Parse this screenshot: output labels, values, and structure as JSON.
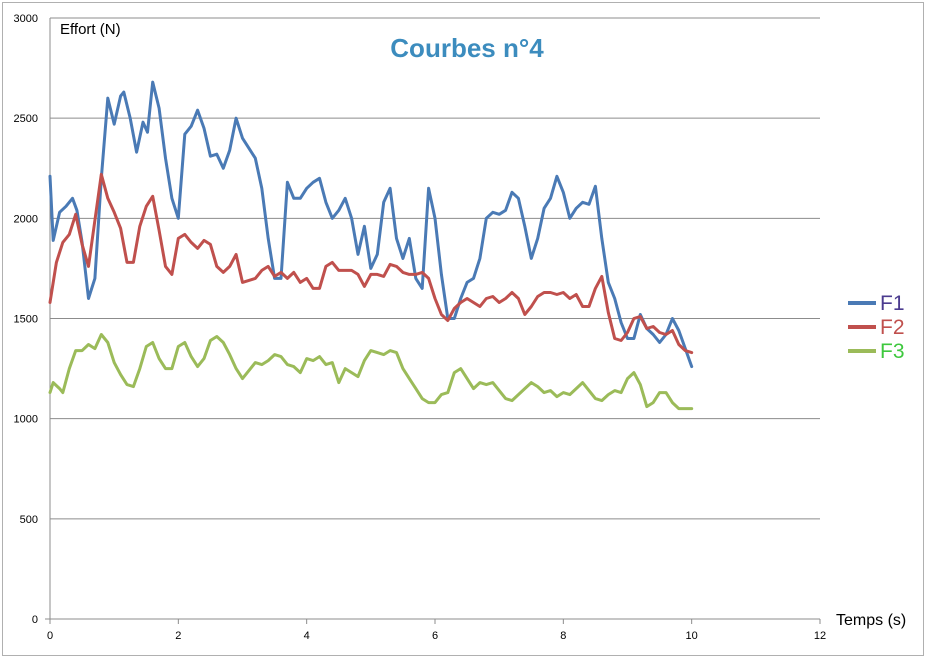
{
  "chart_data": {
    "type": "line",
    "title": "Courbes n°4",
    "xlabel": "Temps (s)",
    "ylabel": "Effort (N)",
    "xlim": [
      0,
      12
    ],
    "ylim": [
      0,
      3000
    ],
    "x_ticks": [
      "0",
      "2",
      "4",
      "6",
      "8",
      "10",
      "12"
    ],
    "y_ticks": [
      "0",
      "500",
      "1000",
      "1500",
      "2000",
      "2500",
      "3000"
    ],
    "grid": "horizontal",
    "legend_position": "right",
    "series": [
      {
        "name": "F1",
        "color": "#4a7ab5",
        "label_color": "#4b3b8f",
        "points": [
          [
            0.0,
            2210
          ],
          [
            0.05,
            1890
          ],
          [
            0.15,
            2030
          ],
          [
            0.25,
            2060
          ],
          [
            0.35,
            2100
          ],
          [
            0.42,
            2040
          ],
          [
            0.5,
            1880
          ],
          [
            0.6,
            1600
          ],
          [
            0.7,
            1700
          ],
          [
            0.8,
            2200
          ],
          [
            0.9,
            2600
          ],
          [
            1.0,
            2470
          ],
          [
            1.1,
            2610
          ],
          [
            1.15,
            2630
          ],
          [
            1.25,
            2500
          ],
          [
            1.35,
            2330
          ],
          [
            1.45,
            2480
          ],
          [
            1.52,
            2430
          ],
          [
            1.6,
            2680
          ],
          [
            1.7,
            2550
          ],
          [
            1.8,
            2300
          ],
          [
            1.9,
            2100
          ],
          [
            2.0,
            2000
          ],
          [
            2.1,
            2420
          ],
          [
            2.2,
            2460
          ],
          [
            2.3,
            2540
          ],
          [
            2.4,
            2450
          ],
          [
            2.5,
            2310
          ],
          [
            2.6,
            2320
          ],
          [
            2.7,
            2250
          ],
          [
            2.8,
            2340
          ],
          [
            2.9,
            2500
          ],
          [
            3.0,
            2400
          ],
          [
            3.1,
            2350
          ],
          [
            3.2,
            2300
          ],
          [
            3.3,
            2150
          ],
          [
            3.4,
            1900
          ],
          [
            3.5,
            1700
          ],
          [
            3.6,
            1700
          ],
          [
            3.7,
            2180
          ],
          [
            3.8,
            2100
          ],
          [
            3.9,
            2100
          ],
          [
            4.0,
            2150
          ],
          [
            4.1,
            2180
          ],
          [
            4.2,
            2200
          ],
          [
            4.3,
            2080
          ],
          [
            4.4,
            2000
          ],
          [
            4.5,
            2040
          ],
          [
            4.6,
            2100
          ],
          [
            4.7,
            2000
          ],
          [
            4.8,
            1820
          ],
          [
            4.9,
            1960
          ],
          [
            5.0,
            1750
          ],
          [
            5.1,
            1820
          ],
          [
            5.2,
            2080
          ],
          [
            5.3,
            2150
          ],
          [
            5.4,
            1900
          ],
          [
            5.5,
            1800
          ],
          [
            5.6,
            1900
          ],
          [
            5.7,
            1700
          ],
          [
            5.8,
            1650
          ],
          [
            5.9,
            2150
          ],
          [
            6.0,
            2000
          ],
          [
            6.1,
            1720
          ],
          [
            6.2,
            1500
          ],
          [
            6.3,
            1500
          ],
          [
            6.4,
            1600
          ],
          [
            6.5,
            1680
          ],
          [
            6.6,
            1700
          ],
          [
            6.7,
            1800
          ],
          [
            6.8,
            2000
          ],
          [
            6.9,
            2030
          ],
          [
            7.0,
            2020
          ],
          [
            7.1,
            2040
          ],
          [
            7.2,
            2130
          ],
          [
            7.3,
            2100
          ],
          [
            7.4,
            1960
          ],
          [
            7.5,
            1800
          ],
          [
            7.6,
            1900
          ],
          [
            7.7,
            2050
          ],
          [
            7.8,
            2100
          ],
          [
            7.9,
            2210
          ],
          [
            8.0,
            2130
          ],
          [
            8.1,
            2000
          ],
          [
            8.2,
            2050
          ],
          [
            8.3,
            2080
          ],
          [
            8.4,
            2070
          ],
          [
            8.5,
            2160
          ],
          [
            8.6,
            1900
          ],
          [
            8.7,
            1680
          ],
          [
            8.8,
            1600
          ],
          [
            8.9,
            1480
          ],
          [
            9.0,
            1400
          ],
          [
            9.1,
            1400
          ],
          [
            9.2,
            1520
          ],
          [
            9.3,
            1450
          ],
          [
            9.4,
            1420
          ],
          [
            9.5,
            1380
          ],
          [
            9.6,
            1420
          ],
          [
            9.7,
            1500
          ],
          [
            9.8,
            1440
          ],
          [
            9.9,
            1350
          ],
          [
            10.0,
            1260
          ]
        ]
      },
      {
        "name": "F2",
        "color": "#c0504d",
        "label_color": "#c0504d",
        "points": [
          [
            0.0,
            1580
          ],
          [
            0.1,
            1780
          ],
          [
            0.2,
            1880
          ],
          [
            0.3,
            1920
          ],
          [
            0.4,
            2020
          ],
          [
            0.5,
            1870
          ],
          [
            0.6,
            1760
          ],
          [
            0.7,
            1990
          ],
          [
            0.8,
            2220
          ],
          [
            0.9,
            2100
          ],
          [
            1.0,
            2030
          ],
          [
            1.1,
            1950
          ],
          [
            1.2,
            1780
          ],
          [
            1.3,
            1780
          ],
          [
            1.4,
            1960
          ],
          [
            1.5,
            2060
          ],
          [
            1.6,
            2110
          ],
          [
            1.7,
            1940
          ],
          [
            1.8,
            1760
          ],
          [
            1.9,
            1720
          ],
          [
            2.0,
            1900
          ],
          [
            2.1,
            1920
          ],
          [
            2.2,
            1880
          ],
          [
            2.3,
            1850
          ],
          [
            2.4,
            1890
          ],
          [
            2.5,
            1870
          ],
          [
            2.6,
            1760
          ],
          [
            2.7,
            1730
          ],
          [
            2.8,
            1760
          ],
          [
            2.9,
            1820
          ],
          [
            3.0,
            1680
          ],
          [
            3.1,
            1690
          ],
          [
            3.2,
            1700
          ],
          [
            3.3,
            1740
          ],
          [
            3.4,
            1760
          ],
          [
            3.5,
            1710
          ],
          [
            3.6,
            1730
          ],
          [
            3.7,
            1700
          ],
          [
            3.8,
            1730
          ],
          [
            3.9,
            1680
          ],
          [
            4.0,
            1700
          ],
          [
            4.1,
            1650
          ],
          [
            4.2,
            1650
          ],
          [
            4.3,
            1760
          ],
          [
            4.4,
            1780
          ],
          [
            4.5,
            1740
          ],
          [
            4.6,
            1740
          ],
          [
            4.7,
            1740
          ],
          [
            4.8,
            1720
          ],
          [
            4.9,
            1660
          ],
          [
            5.0,
            1720
          ],
          [
            5.1,
            1720
          ],
          [
            5.2,
            1710
          ],
          [
            5.3,
            1770
          ],
          [
            5.4,
            1760
          ],
          [
            5.5,
            1730
          ],
          [
            5.6,
            1720
          ],
          [
            5.7,
            1720
          ],
          [
            5.8,
            1730
          ],
          [
            5.9,
            1700
          ],
          [
            6.0,
            1600
          ],
          [
            6.1,
            1520
          ],
          [
            6.2,
            1490
          ],
          [
            6.3,
            1550
          ],
          [
            6.4,
            1580
          ],
          [
            6.5,
            1600
          ],
          [
            6.6,
            1580
          ],
          [
            6.7,
            1560
          ],
          [
            6.8,
            1600
          ],
          [
            6.9,
            1610
          ],
          [
            7.0,
            1580
          ],
          [
            7.1,
            1600
          ],
          [
            7.2,
            1630
          ],
          [
            7.3,
            1600
          ],
          [
            7.4,
            1520
          ],
          [
            7.5,
            1560
          ],
          [
            7.6,
            1610
          ],
          [
            7.7,
            1630
          ],
          [
            7.8,
            1630
          ],
          [
            7.9,
            1620
          ],
          [
            8.0,
            1630
          ],
          [
            8.1,
            1600
          ],
          [
            8.2,
            1620
          ],
          [
            8.3,
            1560
          ],
          [
            8.4,
            1560
          ],
          [
            8.5,
            1650
          ],
          [
            8.6,
            1710
          ],
          [
            8.7,
            1530
          ],
          [
            8.8,
            1400
          ],
          [
            8.9,
            1390
          ],
          [
            9.0,
            1430
          ],
          [
            9.1,
            1500
          ],
          [
            9.2,
            1510
          ],
          [
            9.3,
            1450
          ],
          [
            9.4,
            1460
          ],
          [
            9.5,
            1430
          ],
          [
            9.6,
            1420
          ],
          [
            9.7,
            1440
          ],
          [
            9.8,
            1370
          ],
          [
            9.9,
            1340
          ],
          [
            10.0,
            1330
          ]
        ]
      },
      {
        "name": "F3",
        "color": "#9bbb59",
        "label_color": "#3ec83e",
        "points": [
          [
            0.0,
            1130
          ],
          [
            0.05,
            1180
          ],
          [
            0.15,
            1150
          ],
          [
            0.2,
            1130
          ],
          [
            0.3,
            1250
          ],
          [
            0.4,
            1340
          ],
          [
            0.5,
            1340
          ],
          [
            0.6,
            1370
          ],
          [
            0.7,
            1350
          ],
          [
            0.8,
            1420
          ],
          [
            0.9,
            1380
          ],
          [
            1.0,
            1280
          ],
          [
            1.1,
            1220
          ],
          [
            1.2,
            1170
          ],
          [
            1.3,
            1160
          ],
          [
            1.4,
            1250
          ],
          [
            1.5,
            1360
          ],
          [
            1.6,
            1380
          ],
          [
            1.7,
            1300
          ],
          [
            1.8,
            1250
          ],
          [
            1.9,
            1250
          ],
          [
            2.0,
            1360
          ],
          [
            2.1,
            1380
          ],
          [
            2.2,
            1310
          ],
          [
            2.3,
            1260
          ],
          [
            2.4,
            1300
          ],
          [
            2.5,
            1390
          ],
          [
            2.6,
            1410
          ],
          [
            2.7,
            1380
          ],
          [
            2.8,
            1320
          ],
          [
            2.9,
            1250
          ],
          [
            3.0,
            1200
          ],
          [
            3.1,
            1240
          ],
          [
            3.2,
            1280
          ],
          [
            3.3,
            1270
          ],
          [
            3.4,
            1290
          ],
          [
            3.5,
            1320
          ],
          [
            3.6,
            1310
          ],
          [
            3.7,
            1270
          ],
          [
            3.8,
            1260
          ],
          [
            3.9,
            1230
          ],
          [
            4.0,
            1300
          ],
          [
            4.1,
            1290
          ],
          [
            4.2,
            1310
          ],
          [
            4.3,
            1270
          ],
          [
            4.4,
            1280
          ],
          [
            4.5,
            1180
          ],
          [
            4.6,
            1250
          ],
          [
            4.7,
            1230
          ],
          [
            4.8,
            1210
          ],
          [
            4.9,
            1290
          ],
          [
            5.0,
            1340
          ],
          [
            5.1,
            1330
          ],
          [
            5.2,
            1320
          ],
          [
            5.3,
            1340
          ],
          [
            5.4,
            1330
          ],
          [
            5.5,
            1250
          ],
          [
            5.6,
            1200
          ],
          [
            5.7,
            1150
          ],
          [
            5.8,
            1100
          ],
          [
            5.9,
            1080
          ],
          [
            6.0,
            1080
          ],
          [
            6.1,
            1120
          ],
          [
            6.2,
            1130
          ],
          [
            6.3,
            1230
          ],
          [
            6.4,
            1250
          ],
          [
            6.5,
            1200
          ],
          [
            6.6,
            1150
          ],
          [
            6.7,
            1180
          ],
          [
            6.8,
            1170
          ],
          [
            6.9,
            1180
          ],
          [
            7.0,
            1140
          ],
          [
            7.1,
            1100
          ],
          [
            7.2,
            1090
          ],
          [
            7.3,
            1120
          ],
          [
            7.4,
            1150
          ],
          [
            7.5,
            1180
          ],
          [
            7.6,
            1160
          ],
          [
            7.7,
            1130
          ],
          [
            7.8,
            1140
          ],
          [
            7.9,
            1110
          ],
          [
            8.0,
            1130
          ],
          [
            8.1,
            1120
          ],
          [
            8.2,
            1150
          ],
          [
            8.3,
            1180
          ],
          [
            8.4,
            1140
          ],
          [
            8.5,
            1100
          ],
          [
            8.6,
            1090
          ],
          [
            8.7,
            1120
          ],
          [
            8.8,
            1140
          ],
          [
            8.9,
            1130
          ],
          [
            9.0,
            1200
          ],
          [
            9.1,
            1230
          ],
          [
            9.2,
            1170
          ],
          [
            9.3,
            1060
          ],
          [
            9.4,
            1080
          ],
          [
            9.5,
            1130
          ],
          [
            9.6,
            1130
          ],
          [
            9.7,
            1080
          ],
          [
            9.8,
            1050
          ],
          [
            9.9,
            1050
          ],
          [
            10.0,
            1050
          ]
        ]
      }
    ]
  }
}
